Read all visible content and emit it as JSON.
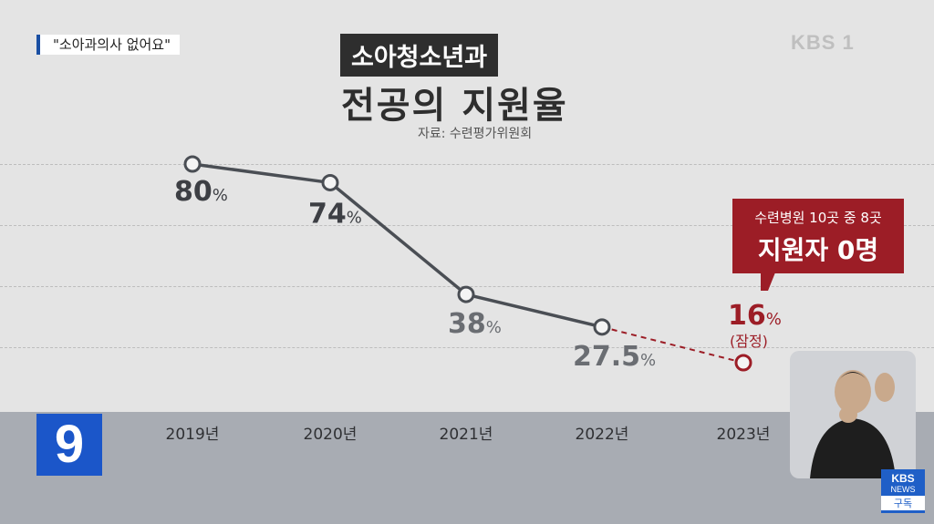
{
  "headline": "\"소아과의사 없어요\"",
  "broadcaster_logo": "KBS 1",
  "chart_data": {
    "type": "line",
    "title": "소아청소년과",
    "subtitle": "전공의 지원율",
    "source": "자료: 수련평가위원회",
    "categories": [
      "2019년",
      "2020년",
      "2021년",
      "2022년",
      "2023년"
    ],
    "values": [
      80,
      74,
      38,
      27.5,
      16
    ],
    "value_labels": [
      "80",
      "74",
      "38",
      "27.5",
      "16"
    ],
    "unit": "%",
    "last_point_note": "(잠정)",
    "last_point_style": "dashed-red",
    "ylim": [
      0,
      100
    ],
    "grid": true
  },
  "callout": {
    "line1": "수련병원 10곳 중 8곳",
    "line2": "지원자 0명"
  },
  "channel_badge": "9",
  "kbs_news": {
    "top": "KBS",
    "mid": "NEWS",
    "subscribe": "구독"
  },
  "colors": {
    "line": "#4a4e54",
    "accent": "#9c1d26",
    "channel": "#1b56c9"
  }
}
